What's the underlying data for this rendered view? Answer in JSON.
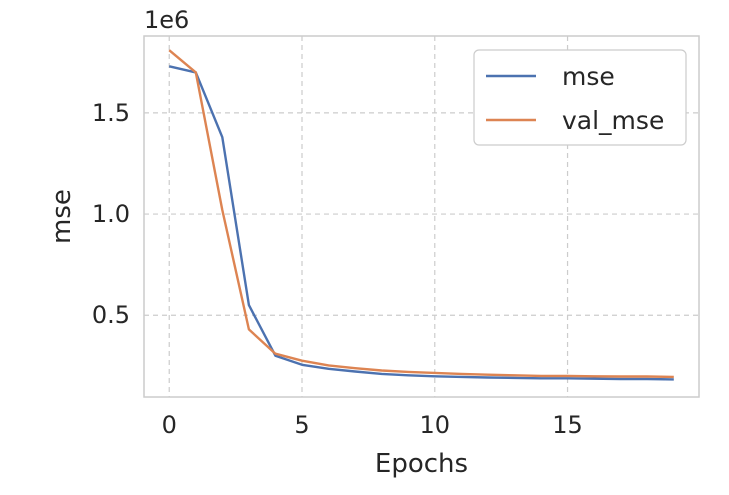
{
  "chart_data": {
    "type": "line",
    "xlabel": "Epochs",
    "ylabel": "mse",
    "y_offset_label": "1e6",
    "xlim": [
      -0.95,
      19.95
    ],
    "ylim": [
      0.0958,
      1.88
    ],
    "x_ticks": [
      0,
      5,
      10,
      15
    ],
    "x_tick_labels": [
      "0",
      "5",
      "10",
      "15"
    ],
    "y_ticks": [
      0.5,
      1.0,
      1.5
    ],
    "y_tick_labels": [
      "0.5",
      "1.0",
      "1.5"
    ],
    "grid": true,
    "legend_position": "upper-right",
    "x": [
      0,
      1,
      2,
      3,
      4,
      5,
      6,
      7,
      8,
      9,
      10,
      11,
      12,
      13,
      14,
      15,
      16,
      17,
      18,
      19
    ],
    "series": [
      {
        "name": "mse",
        "color": "#4c72b0",
        "values": [
          1.73,
          1.7,
          1.38,
          0.55,
          0.3,
          0.255,
          0.235,
          0.222,
          0.21,
          0.203,
          0.198,
          0.195,
          0.192,
          0.19,
          0.188,
          0.188,
          0.186,
          0.185,
          0.185,
          0.183
        ]
      },
      {
        "name": "val_mse",
        "color": "#dd8452",
        "values": [
          1.81,
          1.7,
          1.02,
          0.43,
          0.31,
          0.275,
          0.252,
          0.238,
          0.227,
          0.22,
          0.215,
          0.21,
          0.206,
          0.203,
          0.2,
          0.2,
          0.198,
          0.197,
          0.197,
          0.195
        ]
      }
    ]
  }
}
